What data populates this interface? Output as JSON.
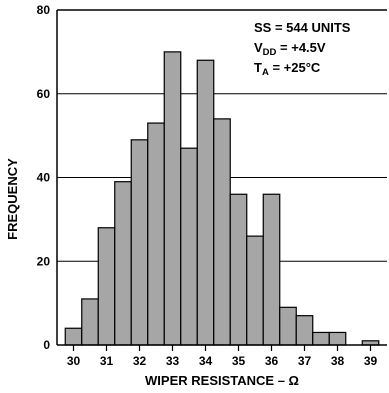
{
  "chart_data": {
    "type": "bar",
    "title": "",
    "xlabel": "WIPER RESISTANCE – Ω",
    "ylabel": "FREQUENCY",
    "ylim": [
      0,
      80
    ],
    "yticks": [
      0,
      20,
      40,
      60,
      80
    ],
    "xticks": [
      30,
      31,
      32,
      33,
      34,
      35,
      36,
      37,
      38,
      39
    ],
    "xlim": [
      29.5,
      39.5
    ],
    "bin_width": 0.5,
    "bins": [
      {
        "x": 30.0,
        "value": 4
      },
      {
        "x": 30.5,
        "value": 11
      },
      {
        "x": 31.0,
        "value": 28
      },
      {
        "x": 31.5,
        "value": 39
      },
      {
        "x": 32.0,
        "value": 49
      },
      {
        "x": 32.5,
        "value": 53
      },
      {
        "x": 33.0,
        "value": 70
      },
      {
        "x": 33.5,
        "value": 47
      },
      {
        "x": 34.0,
        "value": 68
      },
      {
        "x": 34.5,
        "value": 54
      },
      {
        "x": 35.0,
        "value": 36
      },
      {
        "x": 35.5,
        "value": 26
      },
      {
        "x": 36.0,
        "value": 36
      },
      {
        "x": 36.5,
        "value": 9
      },
      {
        "x": 37.0,
        "value": 7
      },
      {
        "x": 37.5,
        "value": 3
      },
      {
        "x": 38.0,
        "value": 3
      },
      {
        "x": 39.0,
        "value": 1
      }
    ],
    "grid": "horizontal",
    "bar_color": "#a6a6a6",
    "annotation": {
      "line1": "SS = 544 UNITS",
      "line2_main": "V",
      "line2_sub": "DD",
      "line2_rest": " = +4.5V",
      "line3_main": "T",
      "line3_sub": "A",
      "line3_rest": " = +25°C"
    }
  }
}
